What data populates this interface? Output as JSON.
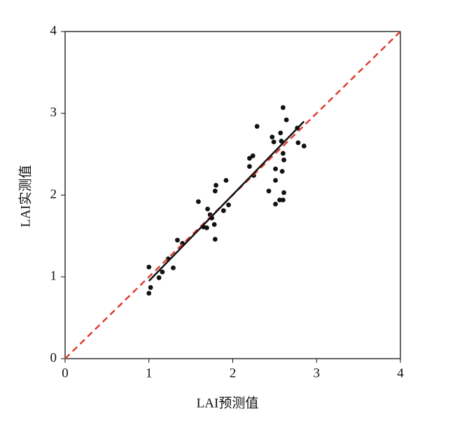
{
  "chart_data": {
    "type": "scatter",
    "x_label": "LAI预测值",
    "y_label": "LAI实测值",
    "xlim": [
      0,
      4
    ],
    "ylim": [
      0,
      4
    ],
    "xticks": [
      0,
      1,
      2,
      3,
      4
    ],
    "yticks": [
      0,
      1,
      2,
      3,
      4
    ],
    "color": "#111111",
    "x": [
      1.0,
      1.02,
      1.0,
      1.12,
      1.16,
      1.23,
      1.29,
      1.34,
      1.4,
      1.59,
      1.65,
      1.69,
      1.7,
      1.73,
      1.75,
      1.78,
      1.79,
      1.79,
      1.8,
      1.89,
      1.92,
      1.95,
      2.2,
      2.2,
      2.24,
      2.25,
      2.29,
      2.43,
      2.47,
      2.49,
      2.51,
      2.51,
      2.51,
      2.56,
      2.57,
      2.58,
      2.6,
      2.59,
      2.6,
      2.61,
      2.6,
      2.61,
      2.64,
      2.77,
      2.78,
      2.85
    ],
    "y": [
      1.12,
      0.87,
      0.8,
      0.99,
      1.06,
      1.22,
      1.11,
      1.45,
      1.41,
      1.92,
      1.61,
      1.6,
      1.83,
      1.76,
      1.72,
      1.64,
      1.46,
      2.05,
      2.12,
      1.81,
      2.18,
      1.88,
      2.35,
      2.45,
      2.48,
      2.24,
      2.84,
      2.05,
      2.71,
      2.65,
      2.32,
      2.18,
      1.89,
      1.94,
      2.76,
      2.66,
      3.07,
      2.29,
      2.51,
      2.43,
      1.94,
      2.03,
      2.92,
      2.82,
      2.64,
      2.6
    ],
    "fit_line": {
      "color": "#111111",
      "x": [
        1.0,
        2.85
      ],
      "y": [
        0.95,
        2.9
      ]
    },
    "reference_line": {
      "color": "#e03c31",
      "x": [
        0,
        4
      ],
      "y": [
        0,
        4
      ]
    }
  }
}
